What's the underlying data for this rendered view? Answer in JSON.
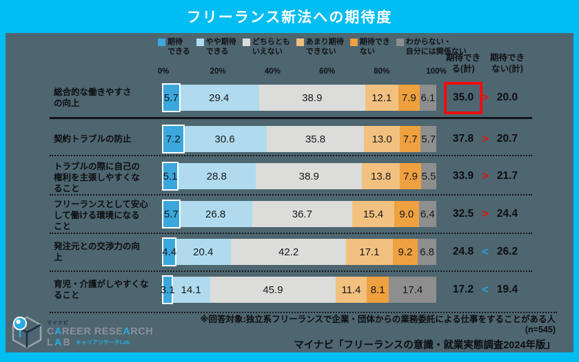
{
  "title": "フリーランス新法への期待度",
  "colors": {
    "frame_cyan": "#00bdf2",
    "panel_bg": "#4d6670",
    "highlight_red": "#f10c0c",
    "gt_red": "#e8140c",
    "lt_blue": "#2c9fd9"
  },
  "chart_data": {
    "type": "bar",
    "subtype": "horizontal-stacked-100pct",
    "title": "フリーランス新法への期待度",
    "unit": "%",
    "x_ticks": [
      "0%",
      "20%",
      "40%",
      "60%",
      "80%",
      "100%"
    ],
    "xlim": [
      0,
      100
    ],
    "legend_position": "top",
    "categories": [
      "総合的な働きやすさ\nの向上",
      "契約トラブルの防止",
      "トラブルの際に自己の\n権利を主張しやすくな\nること",
      "フリーランスとして安心\nして働ける環境になる\nこと",
      "発注元との交渉力の向\n上",
      "育児・介護がしやすくな\nること"
    ],
    "series": [
      {
        "name": "期待できる",
        "legend_label": "期待\nできる",
        "color": "#3ba7dc",
        "values": [
          5.7,
          7.2,
          5.1,
          5.7,
          4.4,
          3.1
        ]
      },
      {
        "name": "やや期待できる",
        "legend_label": "やや期待\nできる",
        "color": "#b0dbee",
        "values": [
          29.4,
          30.6,
          28.8,
          26.8,
          20.4,
          14.1
        ]
      },
      {
        "name": "どちらともいえない",
        "legend_label": "どちらとも\nいえない",
        "color": "#dcdcda",
        "values": [
          38.9,
          35.8,
          38.9,
          36.7,
          42.2,
          45.9
        ]
      },
      {
        "name": "あまり期待できない",
        "legend_label": "あまり期待\nできない",
        "color": "#f2c180",
        "values": [
          12.1,
          13.0,
          13.8,
          15.4,
          17.1,
          11.4
        ]
      },
      {
        "name": "期待できない",
        "legend_label": "期待でき\nない",
        "color": "#efa03f",
        "values": [
          7.9,
          7.7,
          7.9,
          9.0,
          9.2,
          8.1
        ]
      },
      {
        "name": "わからない・自分には関係ない",
        "legend_label": "わからない・\n自分には関係ない",
        "color": "#8e8e8e",
        "values": [
          6.1,
          5.7,
          5.5,
          6.4,
          6.8,
          17.4
        ]
      }
    ],
    "totals": {
      "positive_header": "期待でき\nる(計)",
      "negative_header": "期待でき\nない(計)",
      "positive": [
        35.0,
        37.8,
        33.9,
        32.5,
        24.8,
        17.2
      ],
      "negative": [
        20.0,
        20.7,
        21.7,
        24.4,
        26.2,
        19.4
      ],
      "comparisons": [
        ">",
        ">",
        ">",
        ">",
        "<",
        "<"
      ],
      "highlight": {
        "row": 0,
        "column": "positive"
      }
    }
  },
  "footer": {
    "notes": [
      "※回答対象:独立系フリーランスで企業・団体からの業務委託による仕事をすることがある人",
      "(n=545)",
      "マイナビ「フリーランスの意識・就業実態調査2024年版」"
    ],
    "logo": {
      "brand_small": "マイナビ",
      "line1": "CAREER RESEARCH",
      "line2": "LAB",
      "subtitle": "キャリアリサーチLab",
      "accent": "#29abe2",
      "gray": "#8a909a",
      "navy": "#1d2c4c"
    }
  }
}
